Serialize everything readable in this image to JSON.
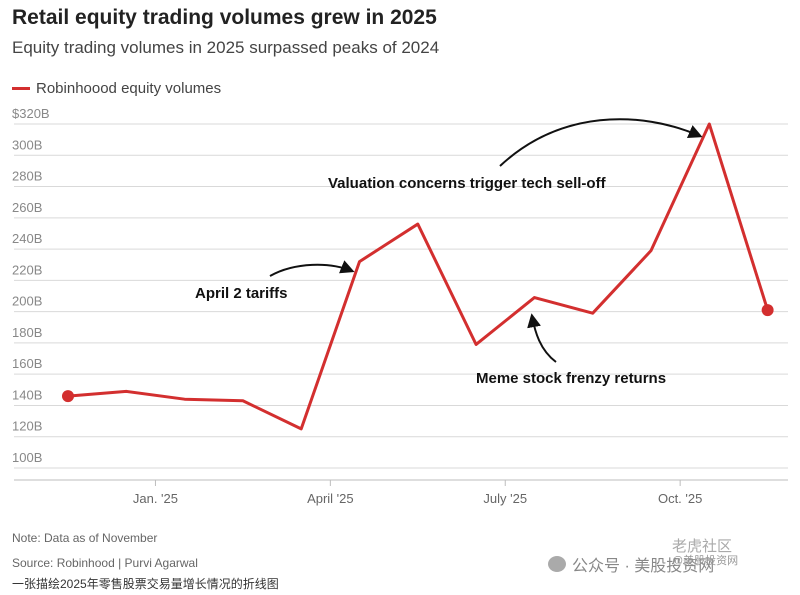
{
  "title": "Retail equity trading volumes grew in 2025",
  "subtitle": "Equity trading volumes in 2025 surpassed peaks of 2024",
  "legend": {
    "label": "Robinhoood equity volumes",
    "color": "#d32f2f"
  },
  "chart_data": {
    "type": "line",
    "title": "Retail equity trading volumes grew in 2025",
    "subtitle": "Equity trading volumes in 2025 surpassed peaks of 2024",
    "ylim": [
      100,
      320
    ],
    "ytick_values": [
      100,
      120,
      140,
      160,
      180,
      200,
      220,
      240,
      260,
      280,
      300,
      320
    ],
    "ytick_labels": [
      "100B",
      "120B",
      "140B",
      "160B",
      "180B",
      "200B",
      "220B",
      "240B",
      "260B",
      "280B",
      "300B",
      "$320B"
    ],
    "x_index_range": [
      0,
      11.5
    ],
    "xtick_positions": [
      1.5,
      4.5,
      7.5,
      10.5
    ],
    "xtick_labels": [
      "Jan. '25",
      "April '25",
      "July '25",
      "Oct. '25"
    ],
    "series": [
      {
        "name": "Robinhoood equity volumes",
        "color": "#d32f2f",
        "x": [
          0,
          1,
          2,
          3,
          4,
          5,
          6,
          7,
          8,
          9,
          10,
          11
        ],
        "values": [
          146,
          149,
          144,
          143,
          125,
          232,
          256,
          179,
          209,
          199,
          239,
          320
        ]
      }
    ],
    "series_end_marker": 201,
    "annotations": [
      {
        "text": "Valuation concerns trigger tech sell-off"
      },
      {
        "text": "April 2 tariffs"
      },
      {
        "text": "Meme stock frenzy returns"
      }
    ],
    "grid": true
  },
  "footer": {
    "note": "Note: Data as of November",
    "source": "Source: Robinhood | Purvi Agarwal",
    "caption": "一张描绘2025年零售股票交易量增长情况的折线图"
  },
  "watermark": {
    "channel": "公众号 · 美股投资网",
    "brand": "老虎社区",
    "brand_sub": "@美股投资网"
  }
}
